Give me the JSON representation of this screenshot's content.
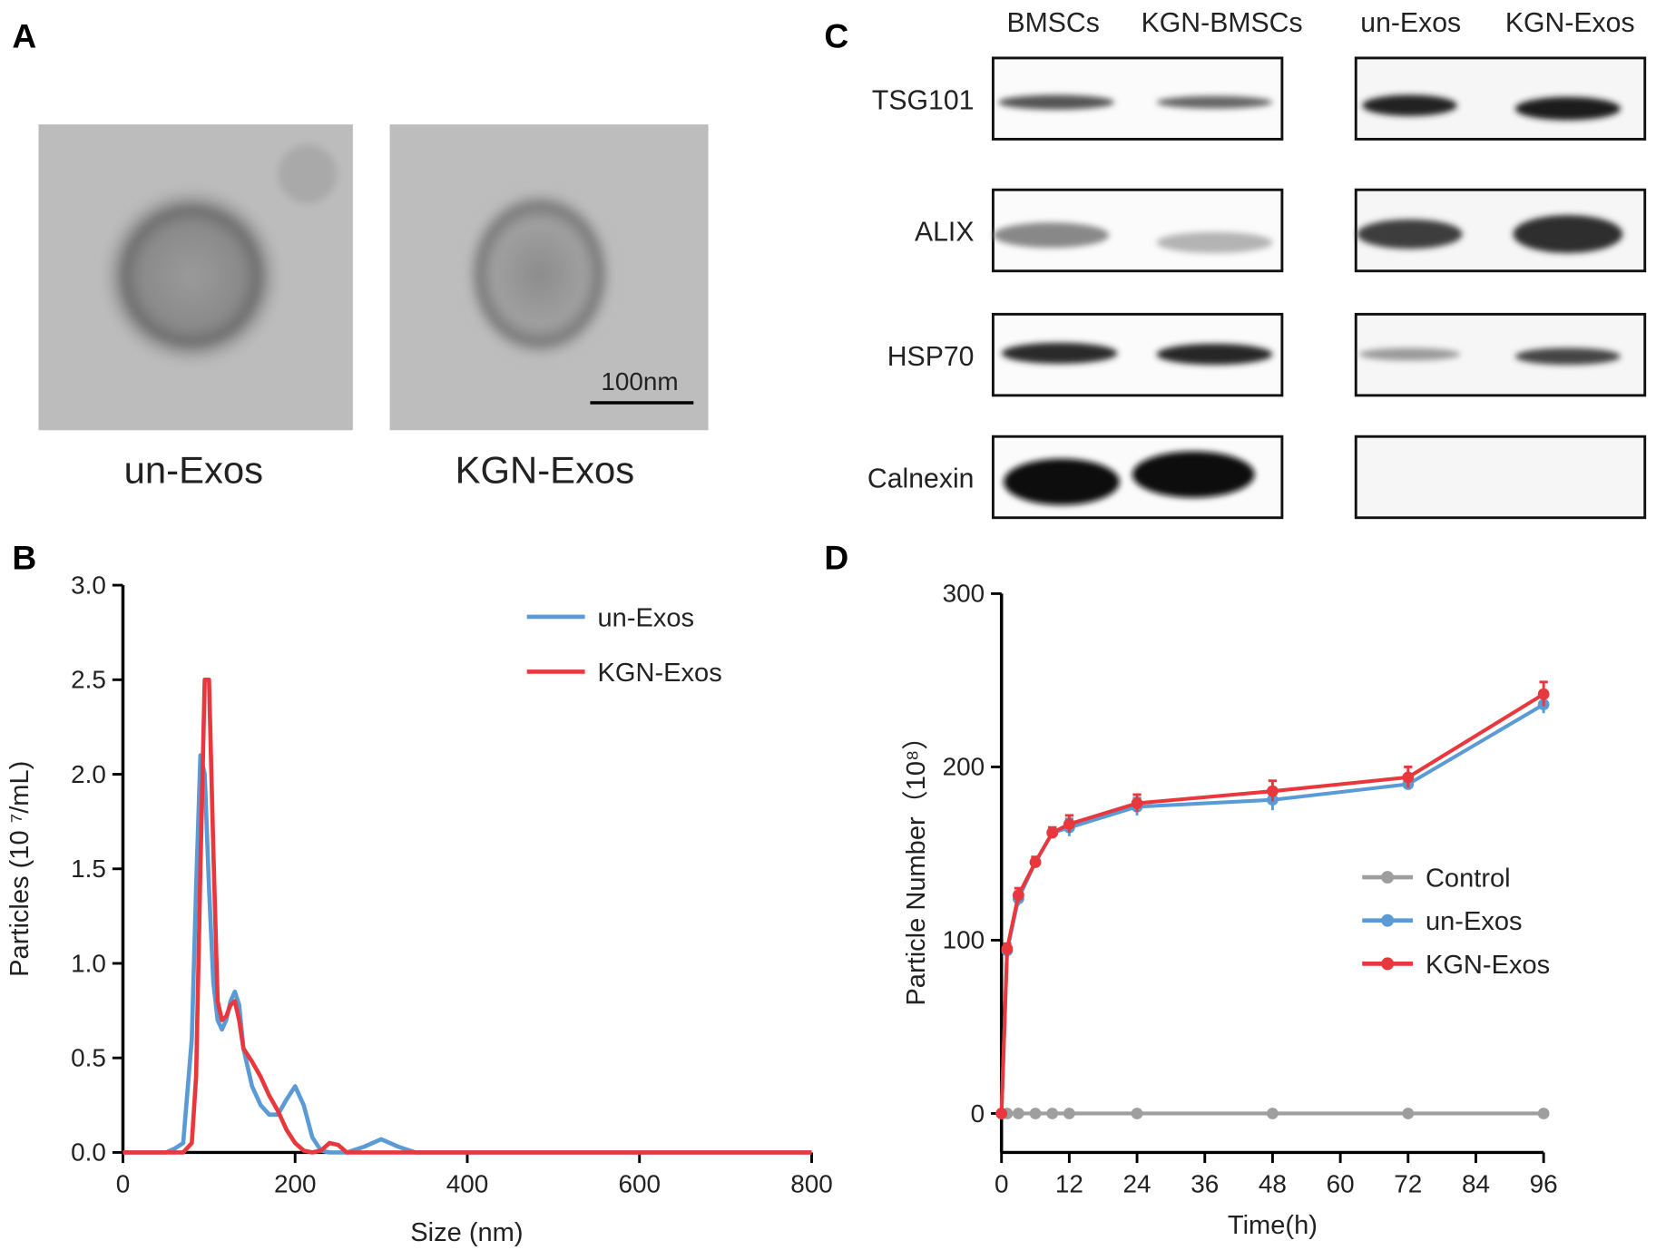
{
  "panel_a": {
    "label": "A",
    "captions": [
      "un-Exos",
      "KGN-Exos"
    ],
    "scale_bar": "100nm"
  },
  "panel_c": {
    "label": "C",
    "left_columns": [
      "BMSCs",
      "KGN-BMSCs"
    ],
    "right_columns": [
      "un-Exos",
      "KGN-Exos"
    ],
    "rows": [
      "TSG101",
      "ALIX",
      "HSP70",
      "Calnexin"
    ]
  },
  "chart_data": [
    {
      "type": "line",
      "panel": "B",
      "x_label": "Size (nm)",
      "y_label": "Particles (10 ⁷/mL)",
      "x": [
        0,
        50,
        60,
        70,
        80,
        85,
        90,
        95,
        100,
        105,
        110,
        115,
        120,
        125,
        130,
        135,
        140,
        150,
        160,
        170,
        180,
        190,
        200,
        210,
        220,
        230,
        240,
        250,
        260,
        280,
        300,
        320,
        340,
        400,
        800
      ],
      "series": [
        {
          "name": "un-Exos",
          "color": "#5b9bd5",
          "values": [
            0,
            0,
            0.02,
            0.05,
            0.6,
            1.4,
            2.1,
            2.0,
            1.4,
            0.9,
            0.7,
            0.65,
            0.7,
            0.8,
            0.85,
            0.78,
            0.55,
            0.35,
            0.25,
            0.2,
            0.2,
            0.28,
            0.35,
            0.25,
            0.08,
            0.01,
            0,
            0,
            0,
            0.03,
            0.07,
            0.03,
            0,
            0,
            0
          ]
        },
        {
          "name": "KGN-Exos",
          "color": "#e8383d",
          "values": [
            0,
            0,
            0,
            0,
            0.05,
            0.4,
            1.5,
            2.5,
            2.5,
            1.6,
            0.8,
            0.7,
            0.72,
            0.78,
            0.8,
            0.7,
            0.55,
            0.48,
            0.4,
            0.3,
            0.22,
            0.12,
            0.05,
            0.01,
            0,
            0.01,
            0.05,
            0.04,
            0,
            0,
            0,
            0,
            0,
            0,
            0
          ]
        }
      ],
      "xlim": [
        0,
        800
      ],
      "xticks": [
        0,
        200,
        400,
        600,
        800
      ],
      "ylim": [
        0,
        3
      ],
      "yticks": [
        {
          "value": 0,
          "label": "0.0"
        },
        0.5,
        {
          "value": 1,
          "label": "1.0"
        },
        1.5,
        {
          "value": 2,
          "label": "2.0"
        },
        2.5,
        {
          "value": 3,
          "label": "3.0"
        }
      ],
      "markers": false
    },
    {
      "type": "line",
      "panel": "D",
      "x_label": "Time(h)",
      "y_label": "Particle Number（10⁸）",
      "x": [
        0,
        1,
        3,
        6,
        9,
        12,
        24,
        48,
        72,
        96
      ],
      "series": [
        {
          "name": "Control",
          "color": "#9e9e9e",
          "values": [
            0,
            0,
            0,
            0,
            0,
            0,
            0,
            0,
            0,
            0
          ],
          "errors": [
            0,
            0,
            0,
            0,
            0,
            0,
            0,
            0,
            0,
            0
          ]
        },
        {
          "name": "un-Exos",
          "color": "#5b9bd5",
          "values": [
            0,
            94,
            124,
            145,
            162,
            165,
            177,
            181,
            190,
            236
          ],
          "errors": [
            0,
            3,
            4,
            3,
            3,
            5,
            5,
            6,
            3,
            5
          ]
        },
        {
          "name": "KGN-Exos",
          "color": "#e8383d",
          "values": [
            0,
            95,
            126,
            145,
            162,
            167,
            179,
            186,
            194,
            242
          ],
          "errors": [
            0,
            3,
            4,
            3,
            3,
            5,
            5,
            6,
            6,
            7
          ]
        }
      ],
      "xlim": [
        0,
        96
      ],
      "xticks": [
        0,
        12,
        24,
        36,
        48,
        60,
        72,
        84,
        96
      ],
      "ylim": [
        -22.5,
        300
      ],
      "yticks": [
        0,
        100,
        200,
        300
      ],
      "markers": true
    }
  ]
}
